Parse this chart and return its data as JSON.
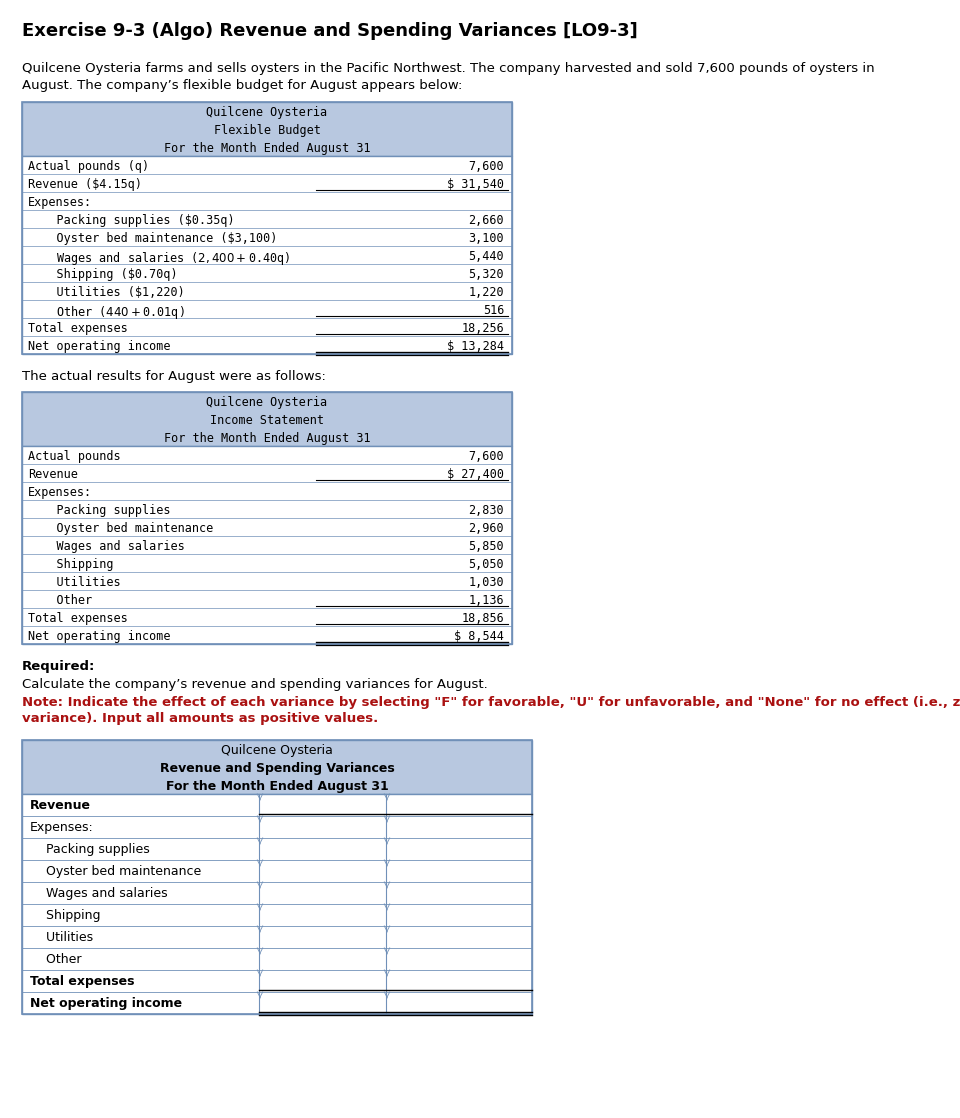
{
  "title": "Exercise 9-3 (Algo) Revenue and Spending Variances [LO9-3]",
  "intro_line1": "Quilcene Oysteria farms and sells oysters in the Pacific Northwest. The company harvested and sold 7,600 pounds of oysters in",
  "intro_line2": "August. The company’s flexible budget for August appears below:",
  "flex_budget": {
    "header1": "Quilcene Oysteria",
    "header2": "Flexible Budget",
    "header3": "For the Month Ended August 31",
    "rows": [
      [
        "Actual pounds (q)",
        "7,600",
        false
      ],
      [
        "Revenue ($4.15q)",
        "$ 31,540",
        true
      ],
      [
        "Expenses:",
        "",
        false
      ],
      [
        "    Packing supplies ($0.35q)",
        "2,660",
        false
      ],
      [
        "    Oyster bed maintenance ($3,100)",
        "3,100",
        false
      ],
      [
        "    Wages and salaries ($2,400 + $0.40q)",
        "5,440",
        false
      ],
      [
        "    Shipping ($0.70q)",
        "5,320",
        false
      ],
      [
        "    Utilities ($1,220)",
        "1,220",
        false
      ],
      [
        "    Other ($440 + $0.01q)",
        "516",
        true
      ],
      [
        "Total expenses",
        "18,256",
        true
      ],
      [
        "Net operating income",
        "$ 13,284",
        true
      ]
    ],
    "double_underline_last": true
  },
  "actual_text": "The actual results for August were as follows:",
  "income_stmt": {
    "header1": "Quilcene Oysteria",
    "header2": "Income Statement",
    "header3": "For the Month Ended August 31",
    "rows": [
      [
        "Actual pounds",
        "7,600",
        false
      ],
      [
        "Revenue",
        "$ 27,400",
        true
      ],
      [
        "Expenses:",
        "",
        false
      ],
      [
        "    Packing supplies",
        "2,830",
        false
      ],
      [
        "    Oyster bed maintenance",
        "2,960",
        false
      ],
      [
        "    Wages and salaries",
        "5,850",
        false
      ],
      [
        "    Shipping",
        "5,050",
        false
      ],
      [
        "    Utilities",
        "1,030",
        false
      ],
      [
        "    Other",
        "1,136",
        true
      ],
      [
        "Total expenses",
        "18,856",
        true
      ],
      [
        "Net operating income",
        "$ 8,544",
        true
      ]
    ],
    "double_underline_last": true
  },
  "required_text": "Required:",
  "required_body": "Calculate the company’s revenue and spending variances for August.",
  "note_line1": "Note: Indicate the effect of each variance by selecting \"F\" for favorable, \"U\" for unfavorable, and \"None\" for no effect (i.e., zero",
  "note_line2": "variance). Input all amounts as positive values.",
  "variance_table": {
    "header1": "Quilcene Oysteria",
    "header2": "Revenue and Spending Variances",
    "header3": "For the Month Ended August 31",
    "rows": [
      [
        "Revenue",
        true,
        false
      ],
      [
        "Expenses:",
        false,
        false
      ],
      [
        "    Packing supplies",
        false,
        false
      ],
      [
        "    Oyster bed maintenance",
        false,
        false
      ],
      [
        "    Wages and salaries",
        false,
        false
      ],
      [
        "    Shipping",
        false,
        false
      ],
      [
        "    Utilities",
        false,
        false
      ],
      [
        "    Other",
        false,
        false
      ],
      [
        "Total expenses",
        true,
        false
      ],
      [
        "Net operating income",
        true,
        true
      ]
    ]
  },
  "header_bg": "#b8c8e0",
  "border_color": "#7090b8",
  "mono_font": "DejaVu Sans Mono",
  "sans_font": "DejaVu Sans"
}
